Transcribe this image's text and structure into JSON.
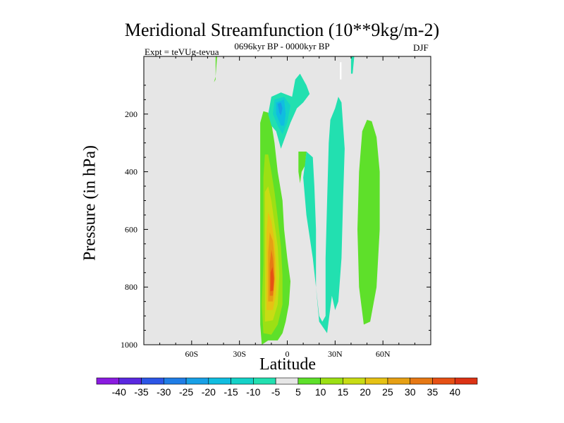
{
  "chart_data": {
    "type": "heatmap",
    "title": "Meridional Streamfunction (10**9kg/m-2)",
    "subtitle": "0696kyr BP - 0000kyr BP",
    "left_annotation": "Expt = teVUg-tevua",
    "right_annotation": "DJF",
    "xlabel": "Latitude",
    "ylabel": "Pressure (in hPa)",
    "xlim": [
      -90,
      90
    ],
    "ylim": [
      1000,
      0
    ],
    "x_ticks": [
      {
        "value": -60,
        "label": "60S"
      },
      {
        "value": -30,
        "label": "30S"
      },
      {
        "value": 0,
        "label": "0"
      },
      {
        "value": 30,
        "label": "30N"
      },
      {
        "value": 60,
        "label": "60N"
      }
    ],
    "y_ticks": [
      {
        "value": 200,
        "label": "200"
      },
      {
        "value": 400,
        "label": "400"
      },
      {
        "value": 600,
        "label": "600"
      },
      {
        "value": 800,
        "label": "800"
      },
      {
        "value": 1000,
        "label": "1000"
      }
    ],
    "colorbar": {
      "labels": [
        "-40",
        "-35",
        "-30",
        "-25",
        "-20",
        "-15",
        "-10",
        "-5",
        "5",
        "10",
        "15",
        "20",
        "25",
        "30",
        "35",
        "40"
      ],
      "colors": [
        "#8a1be0",
        "#5a28e0",
        "#2c56e6",
        "#1f7de6",
        "#18a0e6",
        "#10bde0",
        "#14d2c8",
        "#22e0b0",
        "#e6e6e6",
        "#5ee02a",
        "#9ce014",
        "#c8dc14",
        "#e6c214",
        "#e6a014",
        "#e67814",
        "#e65014",
        "#dc3214"
      ]
    },
    "field": [
      {
        "name": "sh-positive-cell",
        "level": 5,
        "color": "#5ee02a",
        "outline_latp": [
          [
            -16,
            1000
          ],
          [
            -12,
            985
          ],
          [
            -6,
            985
          ],
          [
            -3,
            960
          ],
          [
            -1,
            920
          ],
          [
            1,
            860
          ],
          [
            2,
            780
          ],
          [
            0,
            700
          ],
          [
            -2,
            600
          ],
          [
            -3,
            500
          ],
          [
            -6,
            400
          ],
          [
            -8,
            300
          ],
          [
            -10,
            230
          ],
          [
            -12,
            195
          ],
          [
            -15,
            190
          ],
          [
            -17,
            230
          ],
          [
            -17,
            330
          ],
          [
            -17,
            500
          ],
          [
            -17,
            700
          ],
          [
            -17,
            850
          ],
          [
            -17,
            930
          ]
        ]
      },
      {
        "name": "sh-positive-cell-10",
        "level": 10,
        "color": "#9ce014",
        "outline_latp": [
          [
            -15,
            960
          ],
          [
            -10,
            965
          ],
          [
            -6,
            930
          ],
          [
            -3,
            860
          ],
          [
            -3,
            760
          ],
          [
            -4,
            660
          ],
          [
            -6,
            560
          ],
          [
            -8,
            470
          ],
          [
            -10,
            400
          ],
          [
            -12,
            340
          ],
          [
            -14,
            340
          ],
          [
            -15,
            420
          ],
          [
            -15,
            560
          ],
          [
            -15,
            720
          ],
          [
            -16,
            860
          ]
        ]
      },
      {
        "name": "sh-positive-cell-15",
        "level": 15,
        "color": "#c8dc14",
        "outline_latp": [
          [
            -14,
            920
          ],
          [
            -9,
            915
          ],
          [
            -6,
            860
          ],
          [
            -5,
            760
          ],
          [
            -6,
            660
          ],
          [
            -8,
            580
          ],
          [
            -10,
            500
          ],
          [
            -12,
            450
          ],
          [
            -14,
            470
          ],
          [
            -14,
            600
          ],
          [
            -14,
            760
          ]
        ]
      },
      {
        "name": "sh-positive-cell-20",
        "level": 20,
        "color": "#e6c214",
        "outline_latp": [
          [
            -13,
            880
          ],
          [
            -9,
            880
          ],
          [
            -7,
            820
          ],
          [
            -7,
            720
          ],
          [
            -8,
            640
          ],
          [
            -10,
            570
          ],
          [
            -12,
            540
          ],
          [
            -13,
            610
          ],
          [
            -13,
            740
          ]
        ]
      },
      {
        "name": "sh-positive-cell-25",
        "level": 25,
        "color": "#e6a014",
        "outline_latp": [
          [
            -12,
            850
          ],
          [
            -9,
            850
          ],
          [
            -8,
            780
          ],
          [
            -8,
            700
          ],
          [
            -9,
            640
          ],
          [
            -11,
            610
          ],
          [
            -12,
            680
          ],
          [
            -12,
            780
          ]
        ]
      },
      {
        "name": "sh-positive-cell-30",
        "level": 30,
        "color": "#e67814",
        "outline_latp": [
          [
            -11,
            830
          ],
          [
            -9,
            830
          ],
          [
            -8,
            770
          ],
          [
            -9,
            700
          ],
          [
            -10,
            670
          ],
          [
            -11,
            720
          ]
        ]
      },
      {
        "name": "sh-positive-cell-35",
        "level": 35,
        "color": "#e65014",
        "outline_latp": [
          [
            -10.6,
            815
          ],
          [
            -8.8,
            812
          ],
          [
            -8.5,
            770
          ],
          [
            -9.3,
            730
          ],
          [
            -10.5,
            750
          ]
        ]
      },
      {
        "name": "upper-negative-cell",
        "level": -5,
        "color": "#22e0b0",
        "outline_latp": [
          [
            -7,
            260
          ],
          [
            -4,
            320
          ],
          [
            -2,
            290
          ],
          [
            2,
            230
          ],
          [
            6,
            180
          ],
          [
            10,
            160
          ],
          [
            14,
            130
          ],
          [
            12,
            100
          ],
          [
            8,
            60
          ],
          [
            5,
            80
          ],
          [
            3,
            140
          ],
          [
            -4,
            125
          ],
          [
            -10,
            140
          ],
          [
            -12,
            200
          ],
          [
            -10,
            240
          ]
        ]
      },
      {
        "name": "upper-negative-cell-10",
        "level": -10,
        "color": "#14d2c8",
        "outline_latp": [
          [
            -6,
            240
          ],
          [
            -3,
            270
          ],
          [
            0,
            230
          ],
          [
            2,
            170
          ],
          [
            -2,
            140
          ],
          [
            -8,
            150
          ],
          [
            -9,
            200
          ]
        ]
      },
      {
        "name": "upper-negative-cell-15",
        "level": -15,
        "color": "#10bde0",
        "outline_latp": [
          [
            -4,
            240
          ],
          [
            -2,
            240
          ],
          [
            -1,
            200
          ],
          [
            -2,
            150
          ],
          [
            -7,
            160
          ],
          [
            -7,
            200
          ]
        ]
      },
      {
        "name": "upper-negative-cell-20",
        "level": -20,
        "color": "#18a0e6",
        "outline_latp": [
          [
            -4,
            205
          ],
          [
            -3,
            180
          ],
          [
            -4,
            160
          ],
          [
            -6,
            165
          ],
          [
            -5,
            195
          ]
        ]
      },
      {
        "name": "nh-negative-cell",
        "level": -5,
        "color": "#22e0b0",
        "outline_latp": [
          [
            20,
            900
          ],
          [
            22,
            920
          ],
          [
            24,
            900
          ],
          [
            24,
            700
          ],
          [
            25,
            500
          ],
          [
            26,
            300
          ],
          [
            27,
            220
          ],
          [
            30,
            180
          ],
          [
            32,
            140
          ],
          [
            34,
            160
          ],
          [
            36,
            320
          ],
          [
            35,
            500
          ],
          [
            34,
            700
          ],
          [
            32,
            850
          ],
          [
            30,
            880
          ],
          [
            28,
            830
          ],
          [
            25,
            960
          ],
          [
            20,
            920
          ],
          [
            18,
            800
          ],
          [
            18,
            600
          ],
          [
            17,
            450
          ],
          [
            16,
            350
          ],
          [
            12,
            330
          ],
          [
            10,
            420
          ],
          [
            12,
            550
          ],
          [
            16,
            700
          ],
          [
            18,
            800
          ]
        ]
      },
      {
        "name": "nh-upper-negative-strip",
        "level": -5,
        "color": "#22e0b0",
        "outline_latp": [
          [
            40,
            0
          ],
          [
            42,
            0
          ],
          [
            41,
            60
          ],
          [
            40,
            60
          ]
        ]
      },
      {
        "name": "nh-upper-white-strip",
        "level": 0,
        "color": "#ffffff",
        "outline_latp": [
          [
            33,
            20
          ],
          [
            34,
            20
          ],
          [
            34,
            80
          ],
          [
            33,
            80
          ]
        ]
      },
      {
        "name": "nh-small-positive-cell",
        "level": 5,
        "color": "#5ee02a",
        "outline_latp": [
          [
            7,
            330
          ],
          [
            12,
            330
          ],
          [
            11,
            380
          ],
          [
            9,
            400
          ],
          [
            8,
            440
          ],
          [
            7,
            400
          ]
        ]
      },
      {
        "name": "nh-positive-cell",
        "level": 5,
        "color": "#5ee02a",
        "outline_latp": [
          [
            48,
            930
          ],
          [
            52,
            920
          ],
          [
            56,
            800
          ],
          [
            58,
            600
          ],
          [
            58,
            400
          ],
          [
            56,
            280
          ],
          [
            53,
            225
          ],
          [
            50,
            220
          ],
          [
            47,
            260
          ],
          [
            45,
            400
          ],
          [
            44,
            600
          ],
          [
            45,
            800
          ]
        ]
      },
      {
        "name": "polar-positive-sliver",
        "level": 5,
        "color": "#5ee02a",
        "outline_latp": [
          [
            -46,
            90
          ],
          [
            -45,
            80
          ],
          [
            -45,
            0
          ],
          [
            -44,
            0
          ],
          [
            -45,
            70
          ]
        ]
      }
    ]
  }
}
